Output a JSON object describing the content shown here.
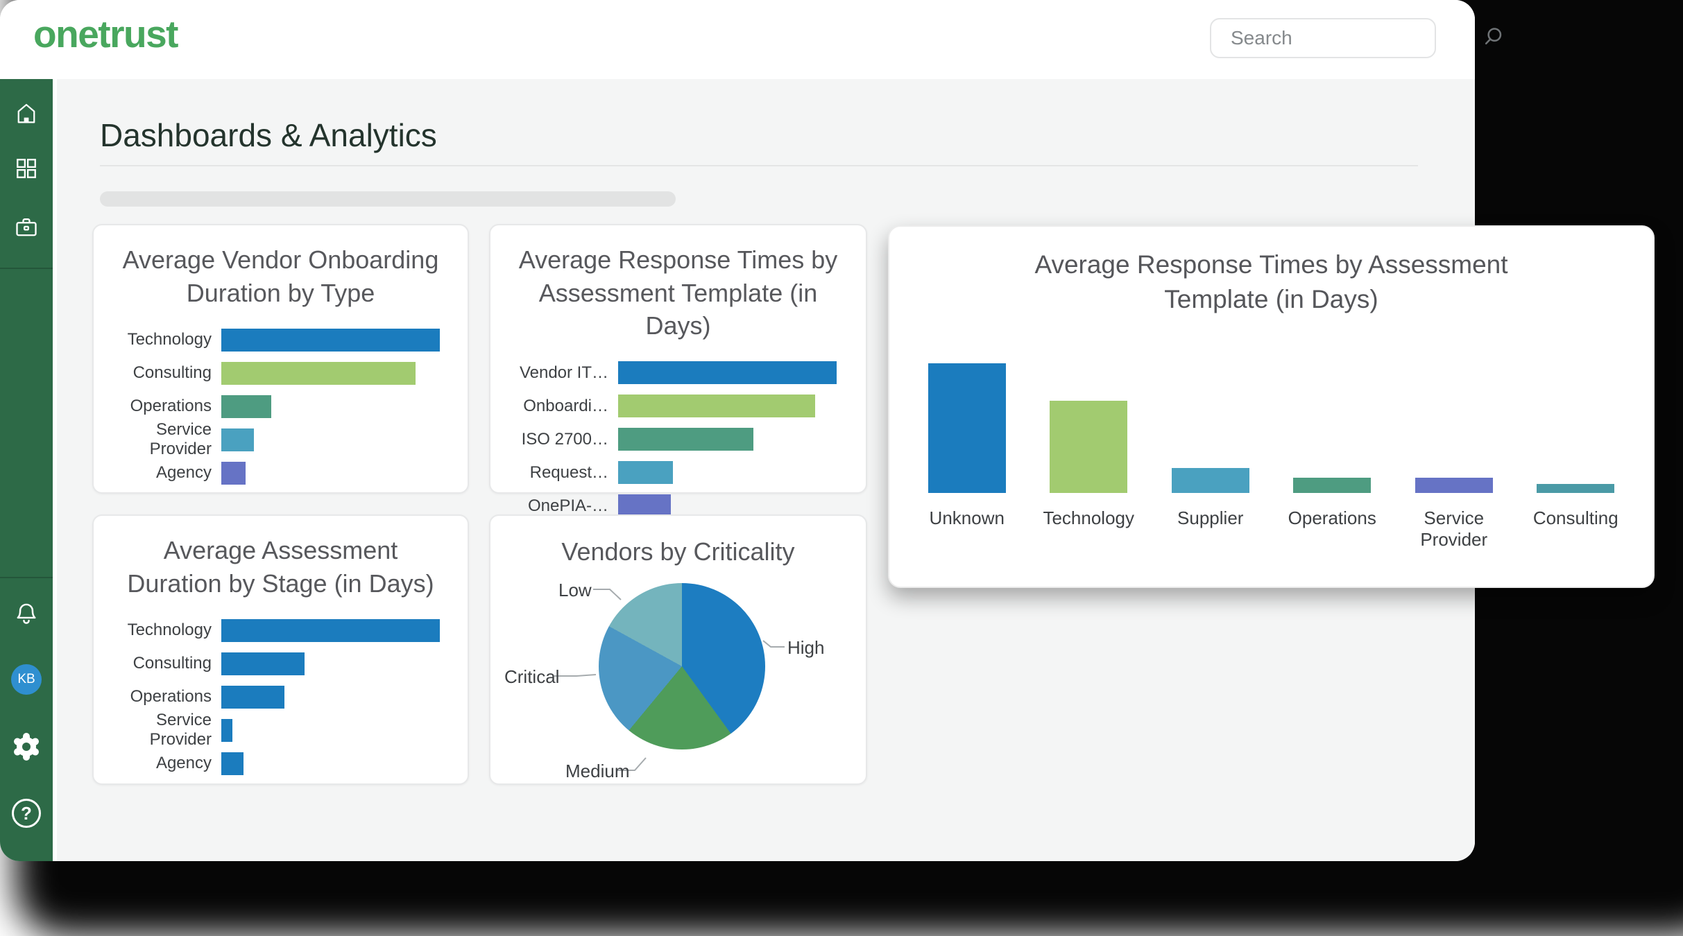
{
  "header": {
    "logo": "onetrust",
    "search_placeholder": "Search"
  },
  "sidebar": {
    "top_items": [
      {
        "label": "home"
      },
      {
        "label": "apps"
      },
      {
        "label": "vendors-workspace"
      }
    ],
    "bottom_items": [
      {
        "label": "notifications"
      },
      {
        "label": "account"
      },
      {
        "label": "settings"
      },
      {
        "label": "help"
      }
    ],
    "avatar_initials": "KB",
    "help_glyph": "?"
  },
  "page": {
    "title": "Dashboards & Analytics"
  },
  "colors": {
    "sidebar_green": "#2d6a47",
    "logo_green": "#49a75e",
    "avatar_blue": "#2f8fd0",
    "content_background": "#f4f5f5",
    "card_title_gray": "#57585c",
    "bar_blue": "#1b7cbe",
    "bar_light_green": "#a2cb70",
    "bar_teal_green": "#4e9c81",
    "bar_light_blue": "#4aa1c0",
    "bar_purple": "#6673c5",
    "bar_teal": "#4a9aa6"
  },
  "chart_data": [
    {
      "id": "avg-vendor-onboarding-duration-by-type",
      "type": "bar",
      "orientation": "horizontal",
      "title": "Average Vendor Onboarding Duration by Type",
      "categories": [
        "Technology",
        "Consulting",
        "Operations",
        "Service Provider",
        "Agency"
      ],
      "values": [
        100,
        89,
        23,
        15,
        11
      ],
      "unit": "relative length, % of longest bar (no axis or value labels shown)",
      "bar_colors": [
        "#1b7cbe",
        "#a2cb70",
        "#4e9c81",
        "#4aa1c0",
        "#6673c5"
      ],
      "axes_visible": false,
      "legend": false
    },
    {
      "id": "avg-response-times-by-assessment-template-small",
      "type": "bar",
      "orientation": "horizontal",
      "title": "Average Response Times by Assessment Template (in Days)",
      "categories": [
        "Vendor IT…",
        "Onboardi…",
        "ISO 2700…",
        "Request…",
        "OnePIA-…"
      ],
      "values": [
        100,
        90,
        62,
        25,
        24
      ],
      "unit": "relative length, % of longest bar (no axis or value labels shown)",
      "bar_colors": [
        "#1b7cbe",
        "#a2cb70",
        "#4e9c81",
        "#4aa1c0",
        "#6673c5"
      ],
      "axes_visible": false,
      "legend": false
    },
    {
      "id": "avg-response-times-by-assessment-template-large",
      "type": "bar",
      "orientation": "vertical",
      "title": "Average Response Times by Assessment Template (in Days)",
      "categories": [
        "Unknown",
        "Technology",
        "Supplier",
        "Operations",
        "Service Provider",
        "Consulting"
      ],
      "values": [
        100,
        71,
        19,
        12,
        12,
        7
      ],
      "unit": "relative height, % of tallest bar (no axis or value labels shown)",
      "bar_colors": [
        "#1b7cbe",
        "#a2cb70",
        "#4aa1c0",
        "#4e9c81",
        "#6673c5",
        "#4a9aa6"
      ],
      "axes_visible": false,
      "legend": false
    },
    {
      "id": "avg-assessment-duration-by-stage",
      "type": "bar",
      "orientation": "horizontal",
      "title": "Average Assessment Duration by Stage (in Days)",
      "categories": [
        "Technology",
        "Consulting",
        "Operations",
        "Service Provider",
        "Agency"
      ],
      "values": [
        100,
        38,
        29,
        5,
        10
      ],
      "unit": "relative length, % of longest bar (no axis or value labels shown)",
      "bar_colors": [
        "#1b7cbe",
        "#1b7cbe",
        "#1b7cbe",
        "#1b7cbe",
        "#1b7cbe"
      ],
      "axes_visible": false,
      "legend": false
    },
    {
      "id": "vendors-by-criticality",
      "type": "pie",
      "title": "Vendors by Criticality",
      "categories": [
        "High",
        "Medium",
        "Critical",
        "Low"
      ],
      "values": [
        40,
        21,
        22,
        17
      ],
      "unit": "percent of pie (estimated from slice angles; no value labels shown)",
      "slice_colors": [
        "#1d7dc1",
        "#4f9c5a",
        "#4b97c4",
        "#74b4bd"
      ],
      "start_angle": "12 o'clock, clockwise",
      "legend": false
    }
  ]
}
